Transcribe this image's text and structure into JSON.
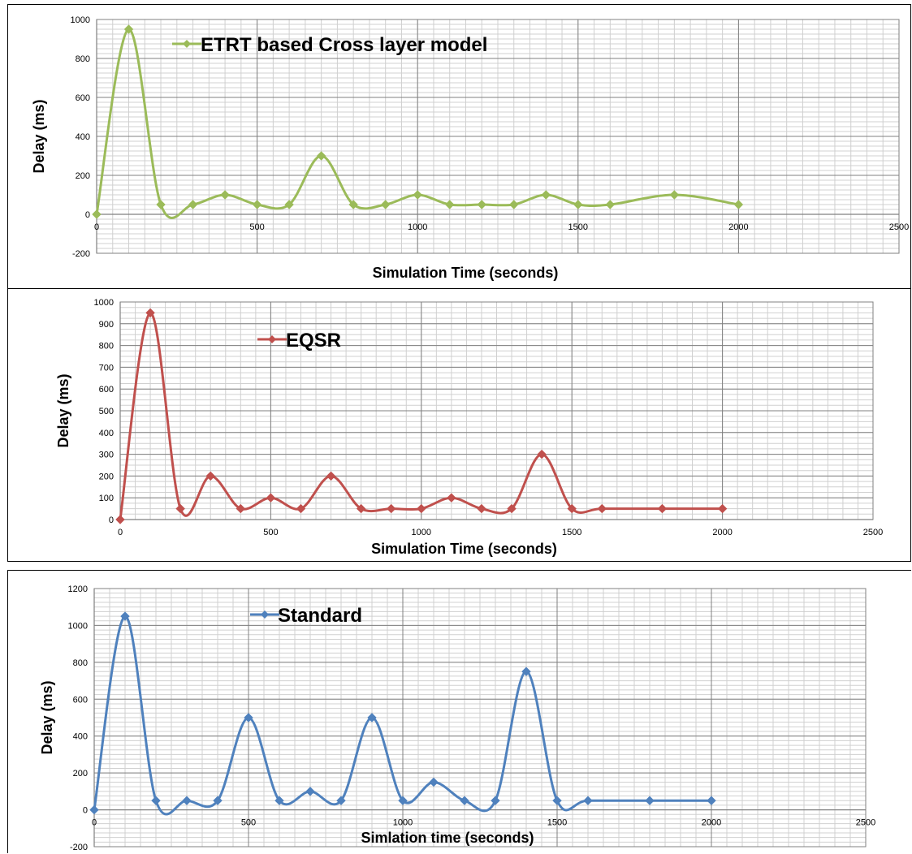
{
  "chart_data": [
    {
      "type": "line",
      "smooth": true,
      "grid": "on",
      "legend_placement": "top-left inside plot",
      "xlabel": "Simulation Time (seconds)",
      "ylabel": "Delay  (ms)",
      "xlim": [
        0,
        2500
      ],
      "ylim": [
        -200,
        1000
      ],
      "x_ticks": [
        0,
        500,
        1000,
        1500,
        2000,
        2500
      ],
      "y_ticks": [
        -200,
        0,
        200,
        400,
        600,
        800,
        1000
      ],
      "series": [
        {
          "name": "ETRT based Cross layer model",
          "color": "#9BBB59",
          "x": [
            0,
            100,
            200,
            300,
            400,
            500,
            600,
            700,
            800,
            900,
            1000,
            1100,
            1200,
            1300,
            1400,
            1500,
            1600,
            1800,
            2000
          ],
          "values": [
            0,
            950,
            50,
            50,
            100,
            50,
            50,
            300,
            50,
            50,
            100,
            50,
            50,
            50,
            100,
            50,
            50,
            100,
            50
          ]
        }
      ]
    },
    {
      "type": "line",
      "smooth": true,
      "grid": "on",
      "legend_placement": "top-left inside plot",
      "xlabel": "Simulation Time (seconds)",
      "ylabel": "Delay (ms)",
      "xlim": [
        0,
        2500
      ],
      "ylim": [
        0,
        1000
      ],
      "x_ticks": [
        0,
        500,
        1000,
        1500,
        2000,
        2500
      ],
      "y_ticks": [
        0,
        100,
        200,
        300,
        400,
        500,
        600,
        700,
        800,
        900,
        1000
      ],
      "series": [
        {
          "name": "EQSR",
          "color": "#C0504D",
          "x": [
            0,
            100,
            200,
            300,
            400,
            500,
            600,
            700,
            800,
            900,
            1000,
            1100,
            1200,
            1300,
            1400,
            1500,
            1600,
            1800,
            2000
          ],
          "values": [
            0,
            950,
            50,
            200,
            50,
            100,
            50,
            200,
            50,
            50,
            50,
            100,
            50,
            50,
            300,
            50,
            50,
            50,
            50
          ]
        }
      ]
    },
    {
      "type": "line",
      "smooth": true,
      "grid": "on",
      "legend_placement": "top-left inside plot",
      "xlabel": "Simlation time (seconds)",
      "ylabel": "Delay  (ms)",
      "xlim": [
        0,
        2500
      ],
      "ylim": [
        -200,
        1200
      ],
      "x_ticks": [
        0,
        500,
        1000,
        1500,
        2000,
        2500
      ],
      "y_ticks": [
        -200,
        0,
        200,
        400,
        600,
        800,
        1000,
        1200
      ],
      "series": [
        {
          "name": "Standard",
          "color": "#4F81BD",
          "x": [
            0,
            100,
            200,
            300,
            400,
            500,
            600,
            700,
            800,
            900,
            1000,
            1100,
            1200,
            1300,
            1400,
            1500,
            1600,
            1800,
            2000
          ],
          "values": [
            0,
            1050,
            50,
            50,
            50,
            500,
            50,
            100,
            50,
            500,
            50,
            150,
            50,
            50,
            750,
            50,
            50,
            50,
            50
          ]
        }
      ]
    }
  ]
}
